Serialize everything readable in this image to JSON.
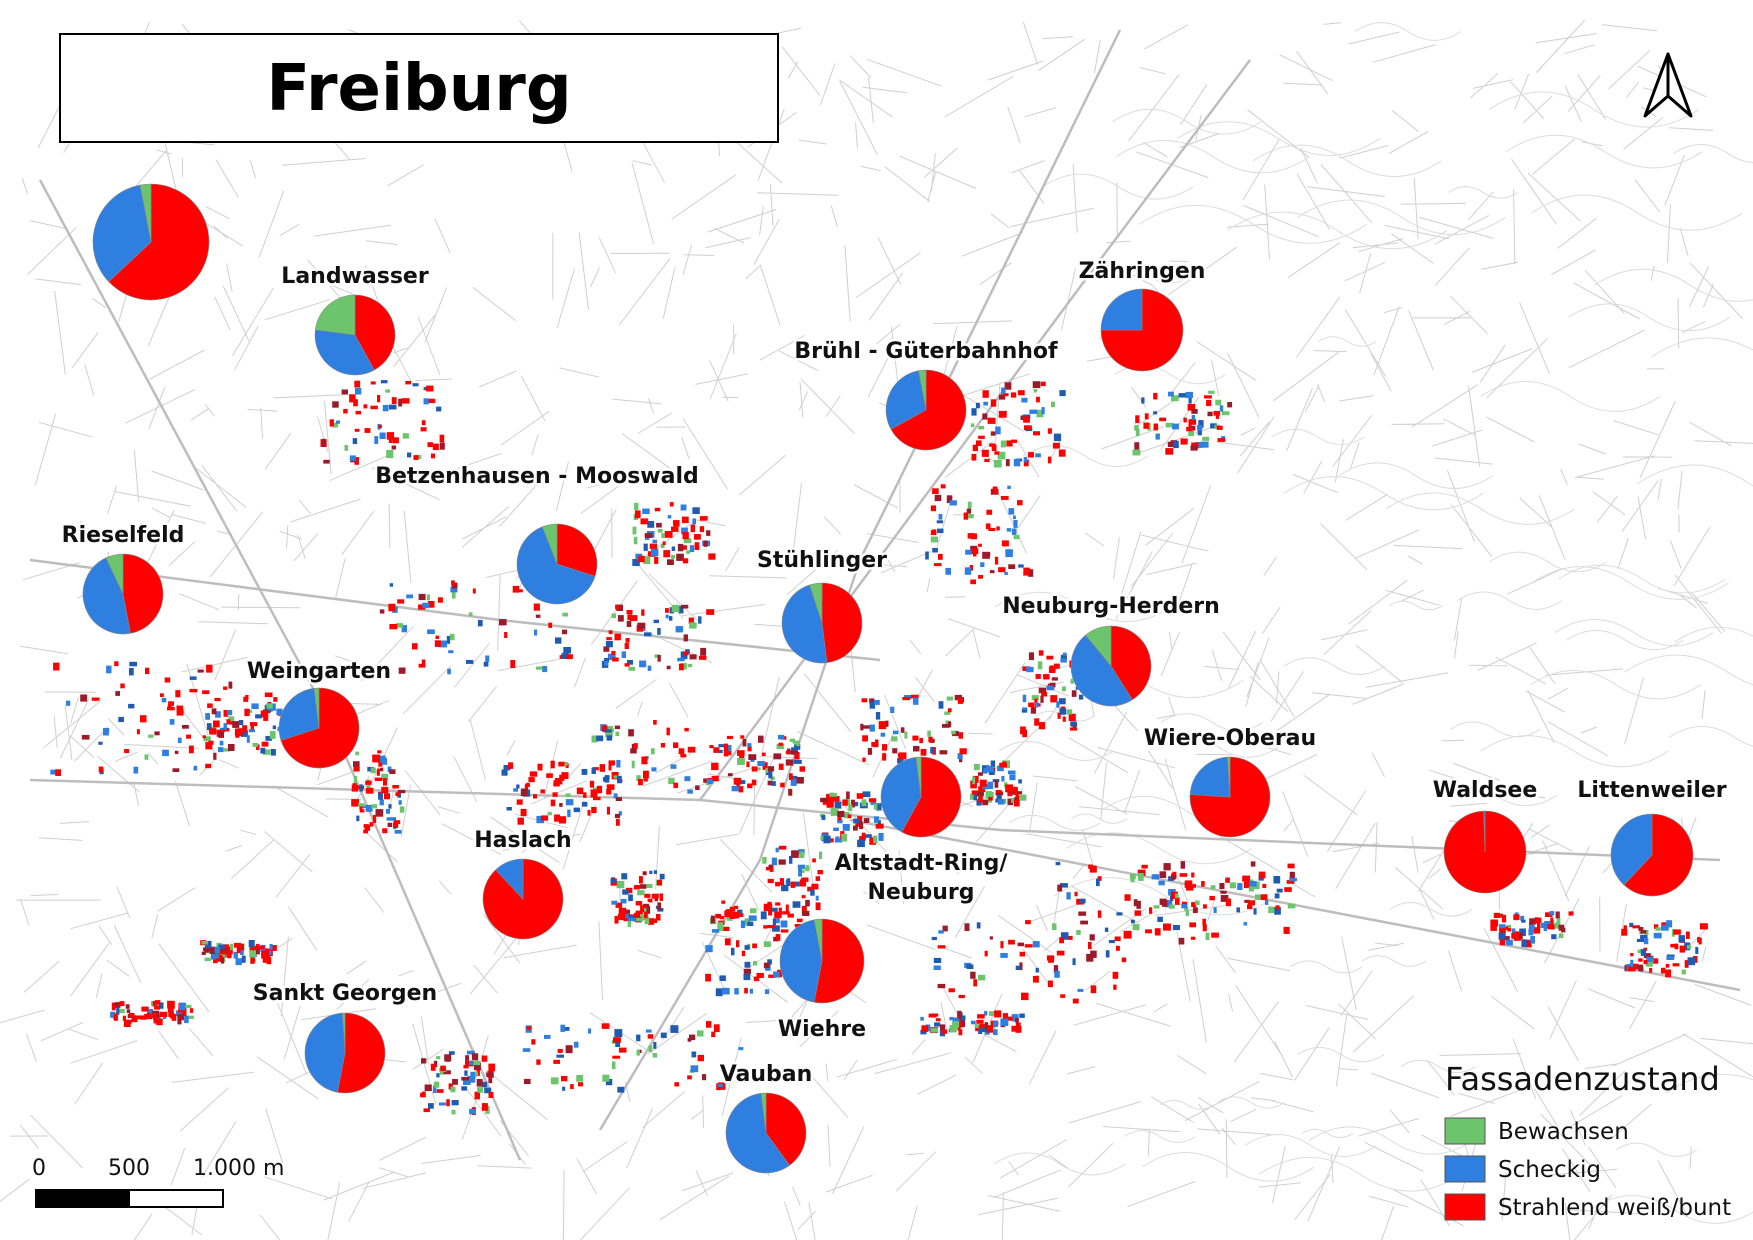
{
  "map": {
    "title": "Freiburg",
    "colors": {
      "bewachsen": "#6cc46c",
      "scheckig": "#2f7fe0",
      "strahlend": "#ff0000",
      "streets": "#cfcfcf",
      "background": "#ffffff"
    },
    "districts": [
      {
        "name": "",
        "bewachsen": 0.03,
        "scheckig": 0.34,
        "strahlend": 0.63
      },
      {
        "name": "Landwasser",
        "bewachsen": 0.23,
        "scheckig": 0.35,
        "strahlend": 0.42
      },
      {
        "name": "Zähringen",
        "bewachsen": 0.0,
        "scheckig": 0.25,
        "strahlend": 0.75
      },
      {
        "name": "Brühl - Güterbahnhof",
        "bewachsen": 0.03,
        "scheckig": 0.3,
        "strahlend": 0.67
      },
      {
        "name": "Betzenhausen - Mooswald",
        "bewachsen": 0.06,
        "scheckig": 0.64,
        "strahlend": 0.3
      },
      {
        "name": "Rieselfeld",
        "bewachsen": 0.07,
        "scheckig": 0.46,
        "strahlend": 0.47
      },
      {
        "name": "Stühlinger",
        "bewachsen": 0.05,
        "scheckig": 0.47,
        "strahlend": 0.48
      },
      {
        "name": "Neuburg-Herdern",
        "bewachsen": 0.11,
        "scheckig": 0.48,
        "strahlend": 0.41
      },
      {
        "name": "Weingarten",
        "bewachsen": 0.02,
        "scheckig": 0.28,
        "strahlend": 0.7
      },
      {
        "name": "Wiere-Oberau",
        "bewachsen": 0.01,
        "scheckig": 0.23,
        "strahlend": 0.76
      },
      {
        "name": "Waldsee",
        "bewachsen": 0.0,
        "scheckig": 0.005,
        "strahlend": 0.995
      },
      {
        "name": "Littenweiler",
        "bewachsen": 0.0,
        "scheckig": 0.38,
        "strahlend": 0.62
      },
      {
        "name": "Haslach",
        "bewachsen": 0.0,
        "scheckig": 0.12,
        "strahlend": 0.88
      },
      {
        "name": "Altstadt-Ring/",
        "name2": "Neuburg",
        "bewachsen": 0.02,
        "scheckig": 0.4,
        "strahlend": 0.58
      },
      {
        "name": "Wiehre",
        "bewachsen": 0.03,
        "scheckig": 0.44,
        "strahlend": 0.53
      },
      {
        "name": "Sankt Georgen",
        "bewachsen": 0.01,
        "scheckig": 0.46,
        "strahlend": 0.53
      },
      {
        "name": "Vauban",
        "bewachsen": 0.02,
        "scheckig": 0.58,
        "strahlend": 0.4
      }
    ],
    "legend": {
      "title": "Fassadenzustand",
      "items": [
        {
          "label": "Bewachsen",
          "color": "#6cc46c"
        },
        {
          "label": "Scheckig",
          "color": "#2f7fe0"
        },
        {
          "label": "Strahlend weiß/bunt",
          "color": "#ff0000"
        }
      ]
    },
    "scale_bar": {
      "ticks": [
        "0",
        "500",
        "1.000 m"
      ]
    },
    "north_arrow": "north-arrow-icon"
  }
}
